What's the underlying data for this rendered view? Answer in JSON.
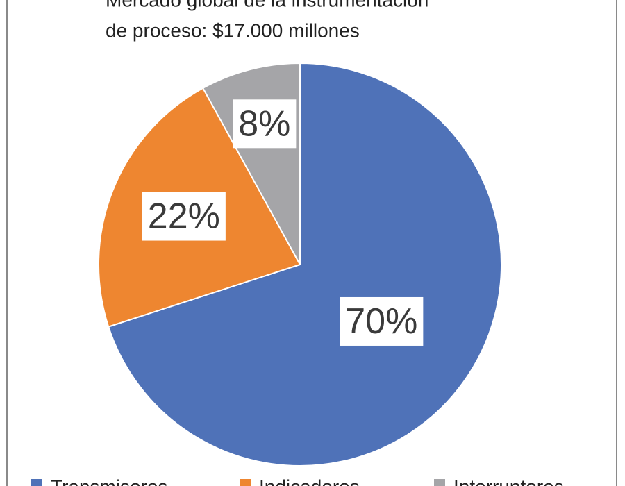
{
  "chart_data": {
    "type": "pie",
    "title_lines": [
      "Mercado global de la instrumentación",
      "de proceso: $17.000 millones"
    ],
    "categories": [
      "Transmisores",
      "Indicadores",
      "Interruptores"
    ],
    "values": [
      70,
      22,
      8
    ],
    "value_labels": [
      "70%",
      "22%",
      "8%"
    ],
    "colors": [
      "#4f72b8",
      "#ee8630",
      "#a5a5a8"
    ],
    "legend": "bottom"
  }
}
